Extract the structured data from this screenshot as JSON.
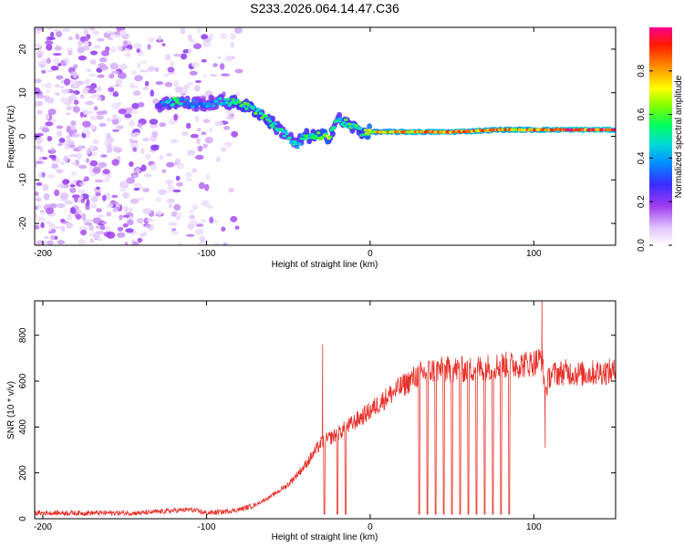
{
  "title": "S233.2026.064.14.47.C36",
  "chart_data": [
    {
      "type": "heatmap",
      "name": "spectrogram",
      "xlabel": "Height of straight line (km)",
      "ylabel": "Frequency (Hz)",
      "xlim": [
        -205,
        150
      ],
      "ylim": [
        -25,
        25
      ],
      "xticks": [
        "-200",
        "-100",
        "0",
        "100"
      ],
      "xtick_values": [
        -200,
        -100,
        0,
        100
      ],
      "yticks": [
        "-20",
        "-10",
        "0",
        "10",
        "20"
      ],
      "ytick_values": [
        -20,
        -10,
        0,
        10,
        20
      ],
      "ridge": {
        "description_points_x": [
          -130,
          -120,
          -110,
          -100,
          -90,
          -80,
          -70,
          -60,
          -50,
          -45,
          -40,
          -35,
          -30,
          -25,
          -20,
          -15,
          -10,
          -5,
          0,
          20,
          50,
          80,
          100,
          120,
          150
        ],
        "description_points_freq": [
          7,
          8,
          7.5,
          7.5,
          8,
          7.5,
          6,
          3,
          0,
          -2,
          0,
          0,
          0,
          0,
          4,
          3,
          2,
          1,
          1,
          1,
          1,
          1.5,
          1.5,
          1.5,
          1.5
        ],
        "amplitude": [
          0.3,
          0.6,
          0.4,
          0.4,
          0.5,
          0.6,
          0.6,
          0.6,
          0.5,
          0.5,
          0.6,
          0.6,
          0.7,
          0.7,
          0.5,
          0.6,
          0.6,
          0.6,
          0.8,
          0.9,
          0.95,
          0.9,
          0.9,
          1.0,
          1.0
        ]
      },
      "noise_x_range": [
        -205,
        -80
      ],
      "colorbar": {
        "label": "Normalized spectral amplitude",
        "ticks": [
          "0.0",
          "0.2",
          "0.4",
          "0.6",
          "0.8"
        ],
        "tick_values": [
          0.0,
          0.2,
          0.4,
          0.6,
          0.8
        ],
        "range": [
          0,
          1
        ],
        "colors": [
          "#ffffff",
          "#d8b4f6",
          "#8a2be2",
          "#3030ff",
          "#00c0ff",
          "#00ff88",
          "#66ff00",
          "#ffff00",
          "#ffa000",
          "#ff2000",
          "#ff007f"
        ]
      }
    },
    {
      "type": "line",
      "name": "snr",
      "xlabel": "Height of straight line (km)",
      "ylabel": "SNR (10 * v/v)",
      "xlim": [
        -205,
        150
      ],
      "ylim": [
        0,
        950
      ],
      "xticks": [
        "-200",
        "-100",
        "0",
        "100"
      ],
      "xtick_values": [
        -200,
        -100,
        0,
        100
      ],
      "yticks": [
        "0",
        "200",
        "400",
        "600",
        "800"
      ],
      "ytick_values": [
        0,
        200,
        400,
        600,
        800
      ],
      "color": "#e8302a",
      "x": [
        -205,
        -180,
        -160,
        -140,
        -120,
        -110,
        -100,
        -90,
        -80,
        -70,
        -60,
        -50,
        -40,
        -35,
        -30,
        -20,
        -10,
        0,
        10,
        20,
        30,
        40,
        50,
        60,
        70,
        80,
        90,
        100,
        105,
        107,
        110,
        120,
        130,
        140,
        150
      ],
      "y": [
        25,
        25,
        25,
        25,
        35,
        40,
        25,
        30,
        40,
        60,
        100,
        150,
        230,
        280,
        330,
        370,
        420,
        470,
        530,
        580,
        630,
        650,
        650,
        650,
        660,
        670,
        670,
        680,
        700,
        550,
        630,
        640,
        630,
        640,
        640
      ],
      "spikes": [
        {
          "x": -29,
          "y": 760
        },
        {
          "x": 105,
          "y": 950
        },
        {
          "x": 107,
          "y": 310
        }
      ],
      "dropouts_x": [
        -28,
        -20,
        -15,
        30,
        35,
        40,
        45,
        50,
        55,
        60,
        65,
        70,
        75,
        80,
        85
      ]
    }
  ]
}
